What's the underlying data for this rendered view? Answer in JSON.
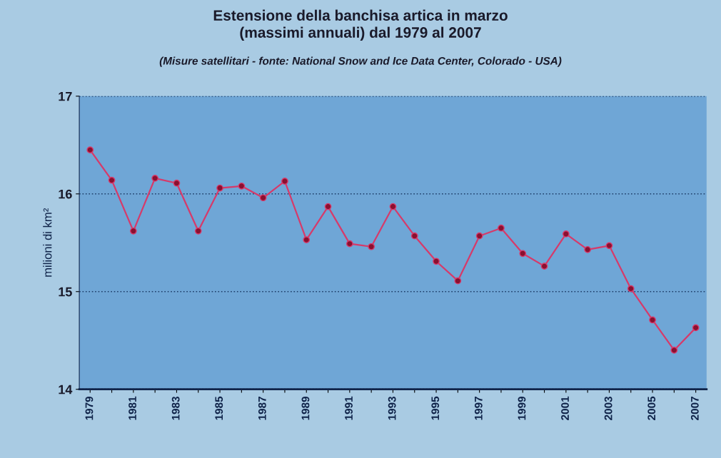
{
  "chart_data": {
    "type": "line",
    "title": "Estensione della banchisa artica in marzo\n(massimi annuali) dal 1979 al 2007",
    "subtitle": "(Misure satellitari - fonte: National Snow and Ice Data Center, Colorado - USA)",
    "ylabel": "milioni di km²",
    "categories": [
      "1979",
      null,
      "1981",
      null,
      "1983",
      null,
      "1985",
      null,
      "1987",
      null,
      "1989",
      null,
      "1991",
      null,
      "1993",
      null,
      "1995",
      null,
      "1997",
      null,
      "1999",
      null,
      "2001",
      null,
      "2003",
      null,
      "2005",
      null,
      "2007"
    ],
    "series": [
      {
        "color": "#d63a6a",
        "values": [
          16.45,
          16.14,
          15.62,
          16.16,
          16.11,
          15.62,
          16.06,
          16.08,
          15.96,
          16.13,
          15.53,
          15.87,
          15.49,
          15.46,
          15.87,
          15.57,
          15.31,
          15.11,
          15.57,
          15.65,
          15.39,
          15.26,
          15.59,
          15.43,
          15.47,
          15.03,
          14.71,
          14.4,
          14.63
        ]
      }
    ],
    "ylim": [
      14,
      17
    ],
    "yticks": [
      14,
      15,
      16,
      17
    ],
    "grid": "y",
    "marker": "circle",
    "line_style": "solid",
    "legend": false
  }
}
